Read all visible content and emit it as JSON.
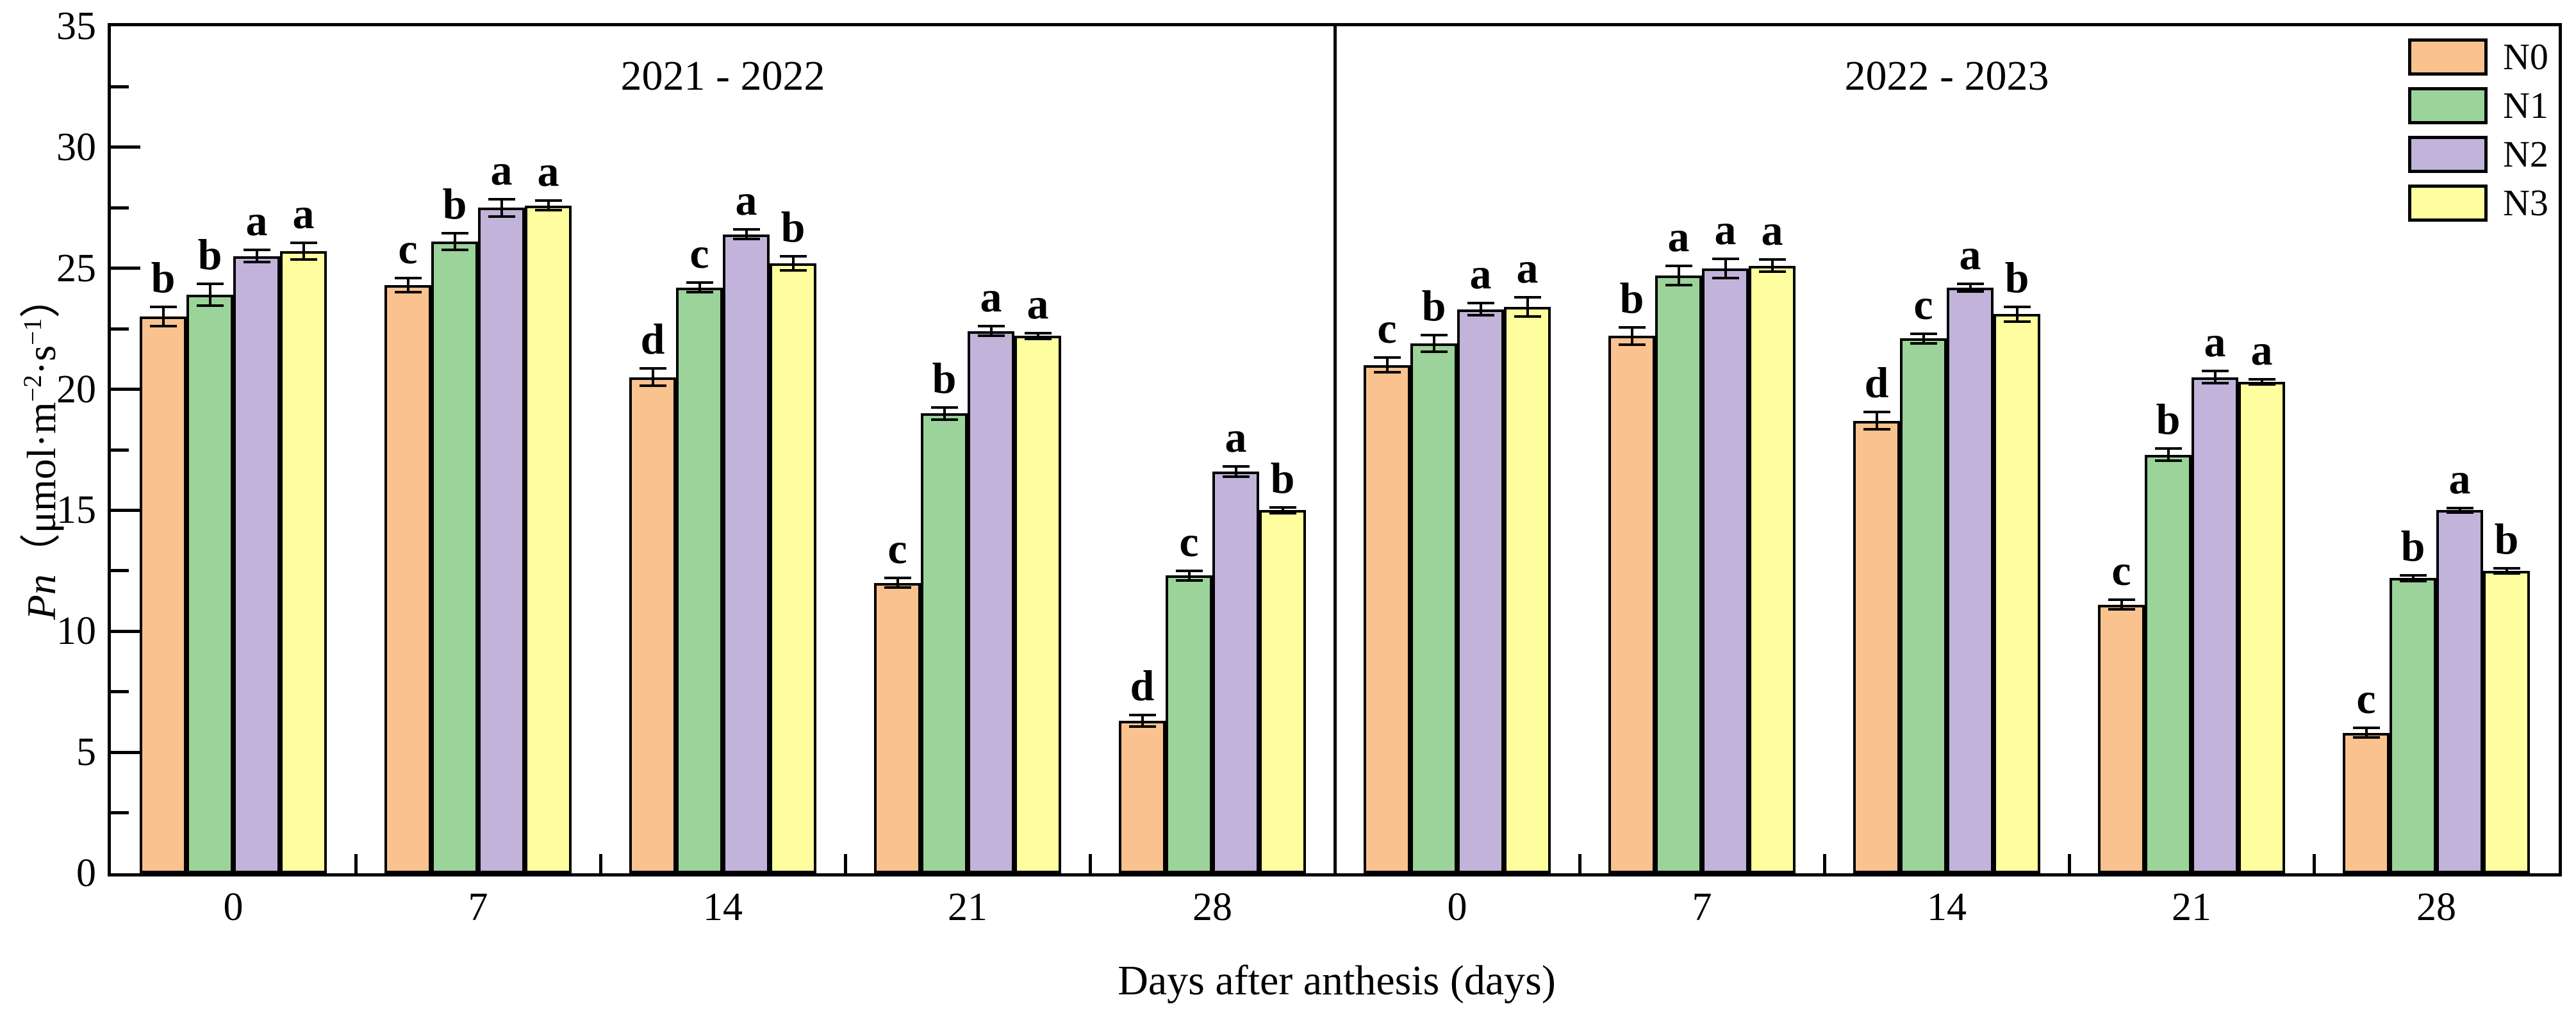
{
  "figure": {
    "xlabel": "Days after anthesis (days)",
    "ylabel": {
      "symbol": "Pn",
      "open": "（μmol·m",
      "sup_a": "−2",
      "mid": "·s",
      "sup_b": "−1",
      "close": "）"
    }
  },
  "chart_data": {
    "type": "bar",
    "xlabel": "Days after anthesis (days)",
    "ylabel": "Pn (μmol·m−2·s−1)",
    "ylim": [
      0,
      35
    ],
    "y_major_step": 5,
    "y_minor_step": 2.5,
    "grid": false,
    "legend_position": "top-right",
    "categories": [
      "0",
      "7",
      "14",
      "21",
      "28"
    ],
    "legend": {
      "entries": [
        {
          "label": "N0",
          "color": "#FAC28F"
        },
        {
          "label": "N1",
          "color": "#9BD39B"
        },
        {
          "label": "N2",
          "color": "#C1B3DA"
        },
        {
          "label": "N3",
          "color": "#FEFE9F"
        }
      ]
    },
    "panels": [
      {
        "title": "2021 - 2022",
        "series": [
          {
            "name": "N0",
            "color": "#FAC28F",
            "values": [
              23.0,
              24.3,
              20.5,
              12.0,
              6.3
            ],
            "errors": [
              0.4,
              0.3,
              0.35,
              0.2,
              0.25
            ],
            "letters": [
              "b",
              "c",
              "d",
              "c",
              "d"
            ]
          },
          {
            "name": "N1",
            "color": "#9BD39B",
            "values": [
              23.9,
              26.1,
              24.2,
              19.0,
              12.3
            ],
            "errors": [
              0.45,
              0.35,
              0.2,
              0.25,
              0.2
            ],
            "letters": [
              "b",
              "b",
              "c",
              "b",
              "c"
            ]
          },
          {
            "name": "N2",
            "color": "#C1B3DA",
            "values": [
              25.5,
              27.5,
              26.4,
              22.4,
              16.6
            ],
            "errors": [
              0.25,
              0.35,
              0.2,
              0.2,
              0.2
            ],
            "letters": [
              "a",
              "a",
              "a",
              "a",
              "a"
            ]
          },
          {
            "name": "N3",
            "color": "#FEFE9F",
            "values": [
              25.7,
              27.6,
              25.2,
              22.2,
              15.0
            ],
            "errors": [
              0.35,
              0.2,
              0.3,
              0.12,
              0.12
            ],
            "letters": [
              "a",
              "a",
              "b",
              "a",
              "b"
            ]
          }
        ]
      },
      {
        "title": "2022 - 2023",
        "series": [
          {
            "name": "N0",
            "color": "#FAC28F",
            "values": [
              21.0,
              22.2,
              18.7,
              11.1,
              5.8
            ],
            "errors": [
              0.3,
              0.35,
              0.35,
              0.2,
              0.2
            ],
            "letters": [
              "c",
              "b",
              "d",
              "c",
              "c"
            ]
          },
          {
            "name": "N1",
            "color": "#9BD39B",
            "values": [
              21.9,
              24.7,
              22.1,
              17.3,
              12.2
            ],
            "errors": [
              0.35,
              0.4,
              0.2,
              0.25,
              0.12
            ],
            "letters": [
              "b",
              "a",
              "c",
              "b",
              "b"
            ]
          },
          {
            "name": "N2",
            "color": "#C1B3DA",
            "values": [
              23.3,
              25.0,
              24.2,
              20.5,
              15.0
            ],
            "errors": [
              0.25,
              0.4,
              0.15,
              0.25,
              0.1
            ],
            "letters": [
              "a",
              "a",
              "a",
              "a",
              "a"
            ]
          },
          {
            "name": "N3",
            "color": "#FEFE9F",
            "values": [
              23.4,
              25.1,
              23.1,
              20.3,
              12.5
            ],
            "errors": [
              0.4,
              0.25,
              0.3,
              0.1,
              0.1
            ],
            "letters": [
              "a",
              "a",
              "b",
              "a",
              "b"
            ]
          }
        ]
      }
    ]
  }
}
